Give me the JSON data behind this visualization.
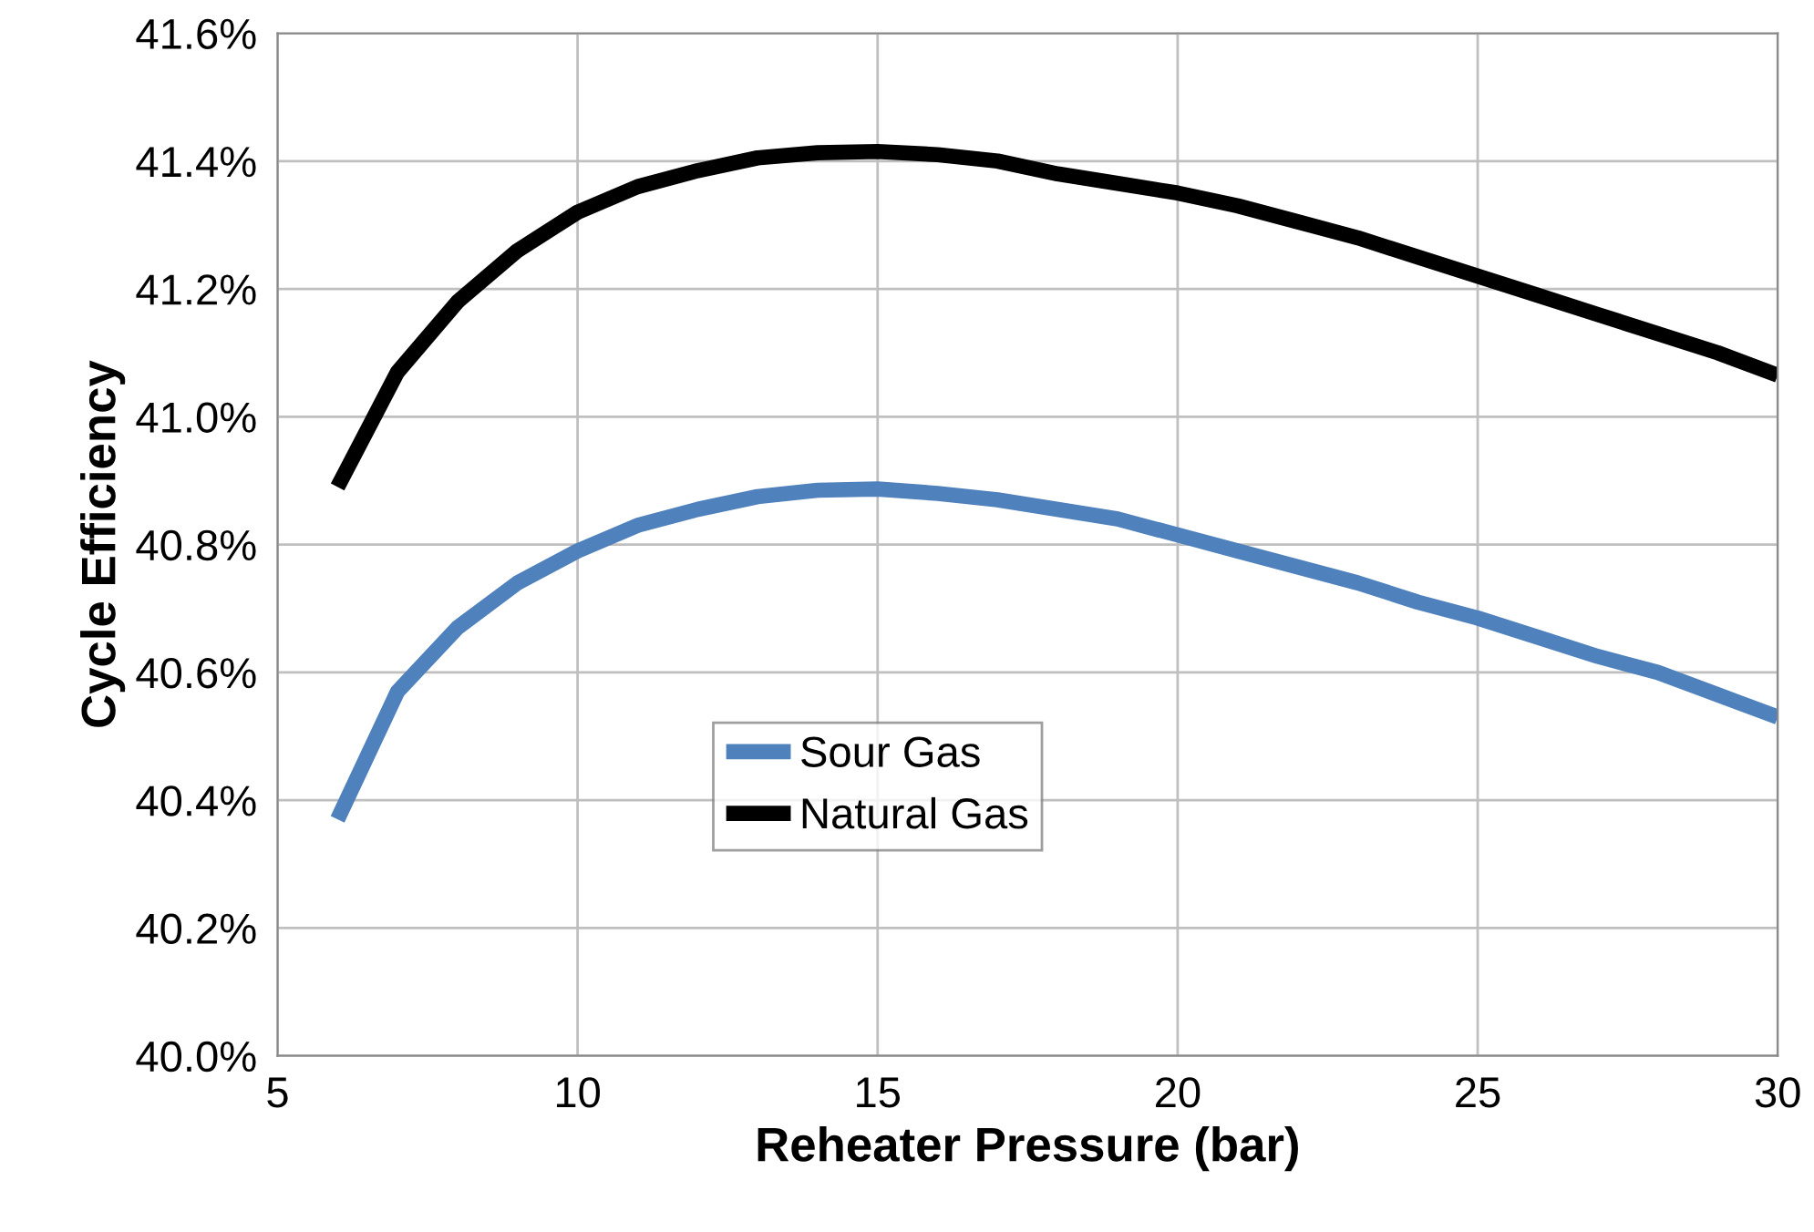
{
  "chart_data": {
    "type": "line",
    "xlabel": "Reheater Pressure (bar)",
    "ylabel": "Cycle Efficiency",
    "x": [
      6,
      7,
      8,
      9,
      10,
      11,
      12,
      13,
      14,
      15,
      16,
      17,
      18,
      19,
      20,
      21,
      22,
      23,
      24,
      25,
      26,
      27,
      28,
      29,
      30
    ],
    "series": [
      {
        "name": "Sour Gas",
        "color": "#4f81bd",
        "values": [
          40.37,
          40.57,
          40.67,
          40.74,
          40.79,
          40.83,
          40.855,
          40.875,
          40.885,
          40.887,
          40.88,
          40.87,
          40.855,
          40.84,
          40.815,
          40.79,
          40.765,
          40.74,
          40.71,
          40.685,
          40.655,
          40.625,
          40.6,
          40.565,
          40.53
        ]
      },
      {
        "name": "Natural Gas",
        "color": "#000000",
        "values": [
          40.89,
          41.07,
          41.18,
          41.26,
          41.32,
          41.36,
          41.385,
          41.405,
          41.413,
          41.415,
          41.41,
          41.4,
          41.38,
          41.365,
          41.35,
          41.33,
          41.305,
          41.28,
          41.25,
          41.22,
          41.19,
          41.16,
          41.13,
          41.1,
          41.065
        ]
      }
    ],
    "xlim": [
      5,
      30
    ],
    "xticks": [
      5,
      10,
      15,
      20,
      25,
      30
    ],
    "ylim": [
      40.0,
      41.6
    ],
    "yticks": [
      {
        "value": 40.0,
        "label": "40.0%"
      },
      {
        "value": 40.2,
        "label": "40.2%"
      },
      {
        "value": 40.4,
        "label": "40.4%"
      },
      {
        "value": 40.6,
        "label": "40.6%"
      },
      {
        "value": 40.8,
        "label": "40.8%"
      },
      {
        "value": 41.0,
        "label": "41.0%"
      },
      {
        "value": 41.2,
        "label": "41.2%"
      },
      {
        "value": 41.4,
        "label": "41.4%"
      },
      {
        "value": 41.6,
        "label": "41.6%"
      }
    ],
    "grid": true,
    "legend": "bottom",
    "marker": "none",
    "line_style": "solid"
  }
}
